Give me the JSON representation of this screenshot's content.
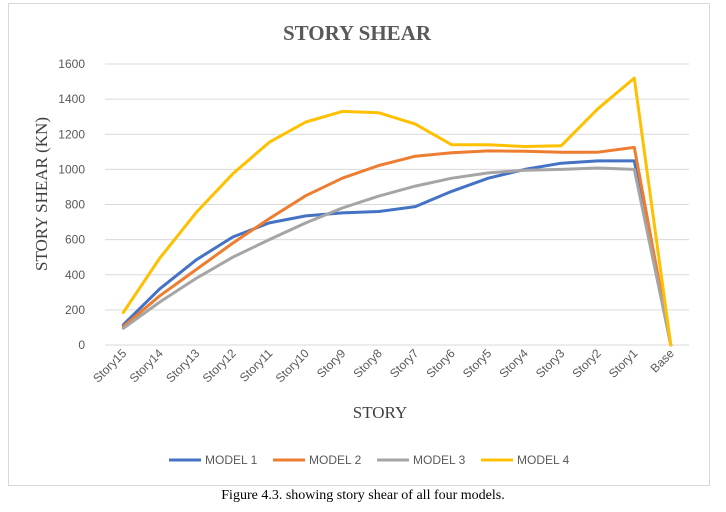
{
  "caption": "Figure 4.3. showing story shear of all four models.",
  "chart_data": {
    "type": "line",
    "title": "STORY SHEAR",
    "xlabel": "STORY",
    "ylabel": "STORY SHEAR (KN)",
    "ylim": [
      0,
      1600
    ],
    "yticks": [
      0,
      200,
      400,
      600,
      800,
      1000,
      1200,
      1400,
      1600
    ],
    "grid": "horizontal",
    "legend_position": "bottom",
    "categories": [
      "Story15",
      "Story14",
      "Story13",
      "Story12",
      "Story11",
      "Story10",
      "Story9",
      "Story8",
      "Story7",
      "Story6",
      "Story5",
      "Story4",
      "Story3",
      "Story2",
      "Story1",
      "Base"
    ],
    "series": [
      {
        "name": "MODEL 1",
        "color": "#4472C4",
        "values": [
          115,
          320,
          485,
          615,
          695,
          735,
          752,
          760,
          788,
          875,
          950,
          1000,
          1035,
          1048,
          1048,
          0
        ]
      },
      {
        "name": "MODEL 2",
        "color": "#ED7D31",
        "values": [
          105,
          280,
          430,
          580,
          720,
          850,
          950,
          1022,
          1075,
          1095,
          1105,
          1103,
          1098,
          1098,
          1125,
          0
        ]
      },
      {
        "name": "MODEL 3",
        "color": "#A5A5A5",
        "values": [
          95,
          245,
          380,
          500,
          600,
          695,
          780,
          848,
          905,
          950,
          980,
          995,
          1000,
          1008,
          1000,
          0
        ]
      },
      {
        "name": "MODEL 4",
        "color": "#FFC000",
        "values": [
          185,
          495,
          755,
          975,
          1155,
          1270,
          1330,
          1322,
          1258,
          1140,
          1140,
          1130,
          1135,
          1345,
          1520,
          0
        ]
      }
    ]
  }
}
